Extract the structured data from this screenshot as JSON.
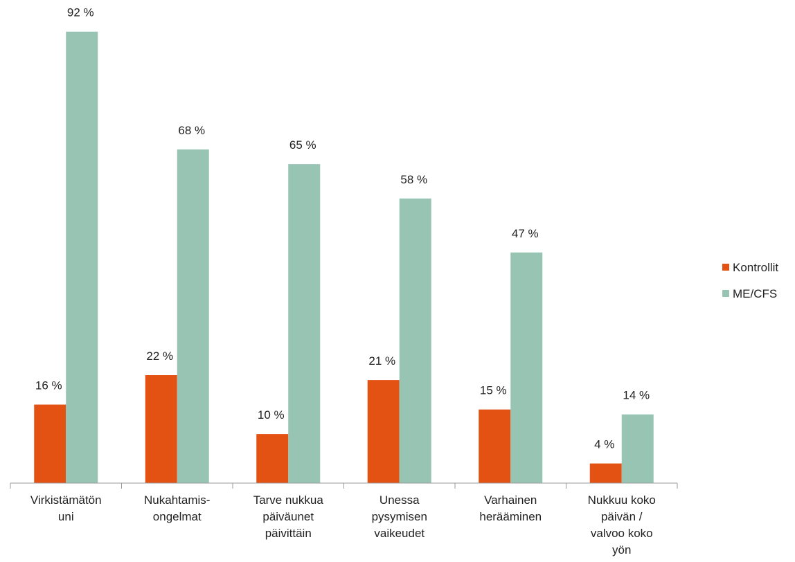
{
  "chart_data": {
    "type": "bar",
    "categories": [
      [
        "Virkistämätön",
        "uni"
      ],
      [
        "Nukahtamis-",
        "ongelmat"
      ],
      [
        "Tarve nukkua",
        "päiväunet",
        "päivittäin"
      ],
      [
        "Unessa",
        "pysymisen",
        "vaikeudet"
      ],
      [
        "Varhainen",
        "herääminen"
      ],
      [
        "Nukkuu koko",
        "päivän /",
        "valvoo koko",
        "yön"
      ]
    ],
    "series": [
      {
        "name": "Kontrollit",
        "color": "#e35213",
        "values": [
          16,
          22,
          10,
          21,
          15,
          4
        ],
        "value_labels": [
          "16 %",
          "22 %",
          "10 %",
          "21 %",
          "15 %",
          "4 %"
        ]
      },
      {
        "name": "ME/CFS",
        "color": "#98c4b4",
        "values": [
          92,
          68,
          65,
          58,
          47,
          14
        ],
        "value_labels": [
          "92 %",
          "68 %",
          "65 %",
          "58 %",
          "47 %",
          "14 %"
        ]
      }
    ],
    "ylim": [
      0,
      100
    ],
    "legend": "right"
  }
}
